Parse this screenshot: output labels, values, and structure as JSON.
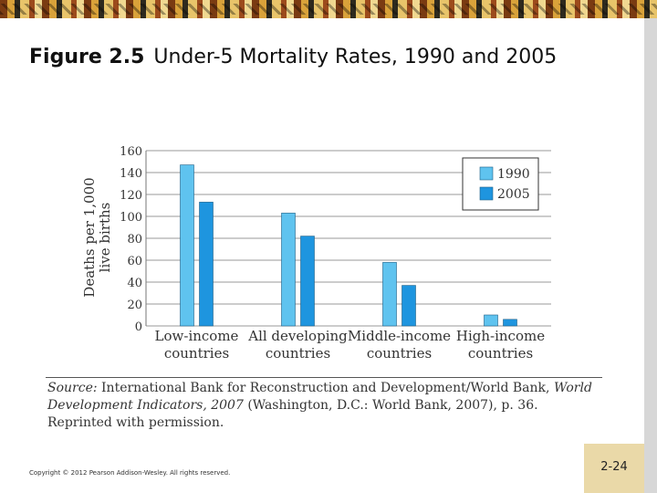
{
  "slide": {
    "figure_label": "Figure 2.5",
    "figure_title": "Under-5 Mortality Rates, 1990 and 2005",
    "source_label": "Source:",
    "source_text_1": "International Bank for Reconstruction and Development/World Bank,",
    "source_italic": "World Development Indicators, 2007",
    "source_text_2": "(Washington, D.C.: World Bank, 2007), p. 36. Reprinted with permission.",
    "copyright": "Copyright © 2012 Pearson Addison-Wesley. All rights reserved.",
    "page_number": "2-24"
  },
  "chart_data": {
    "type": "bar",
    "title": "",
    "ylabel_line1": "Deaths per 1,000",
    "ylabel_line2": "live births",
    "ylim": [
      0,
      160
    ],
    "yticks": [
      0,
      20,
      40,
      60,
      80,
      100,
      120,
      140,
      160
    ],
    "categories": [
      [
        "Low-income",
        "countries"
      ],
      [
        "All developing",
        "countries"
      ],
      [
        "Middle-income",
        "countries"
      ],
      [
        "High-income",
        "countries"
      ]
    ],
    "series": [
      {
        "name": "1990",
        "color": "#5fc3ef",
        "values": [
          147,
          103,
          58,
          10
        ]
      },
      {
        "name": "2005",
        "color": "#1e95df",
        "values": [
          113,
          82,
          37,
          6
        ]
      }
    ],
    "grid": true,
    "legend": "top-right"
  }
}
